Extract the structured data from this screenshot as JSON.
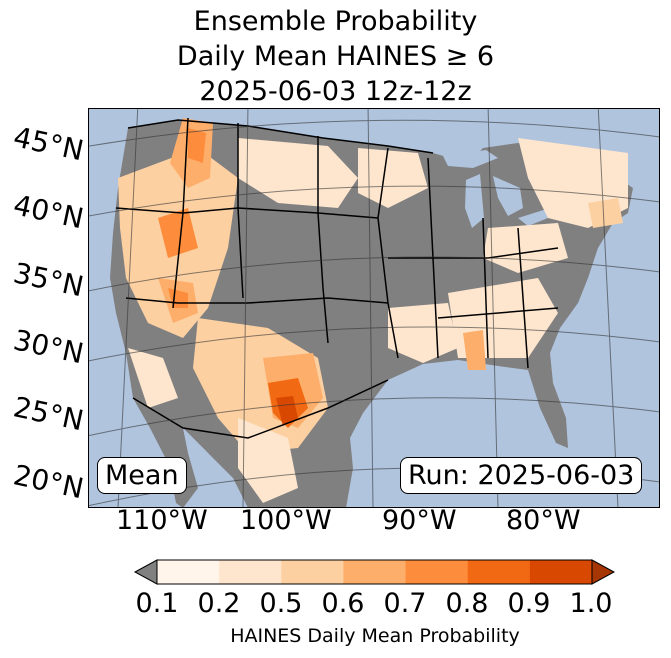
{
  "title": {
    "line1": "Ensemble Probability",
    "line2": "Daily Mean HAINES ≥ 6",
    "line3": "2025-06-03 12z-12z"
  },
  "map": {
    "lat_labels": [
      "45°N",
      "40°N",
      "35°N",
      "30°N",
      "25°N",
      "20°N"
    ],
    "lon_labels": [
      "110°W",
      "100°W",
      "90°W",
      "80°W"
    ],
    "left_badge": "Mean",
    "right_badge": "Run: 2025-06-03",
    "colors": {
      "ocean": "#b0c4de",
      "land_no_data": "#808080",
      "borders": "#000000"
    }
  },
  "colorbar": {
    "label": "HAINES Daily Mean Probability",
    "ticks": [
      "0.1",
      "0.2",
      "0.5",
      "0.6",
      "0.7",
      "0.8",
      "0.9",
      "1.0"
    ],
    "under_color": "#808080",
    "colors": [
      "#fff5eb",
      "#fee6ce",
      "#fdd0a2",
      "#fdae6b",
      "#fd8d3c",
      "#f16913",
      "#d94801",
      "#a63603"
    ]
  }
}
